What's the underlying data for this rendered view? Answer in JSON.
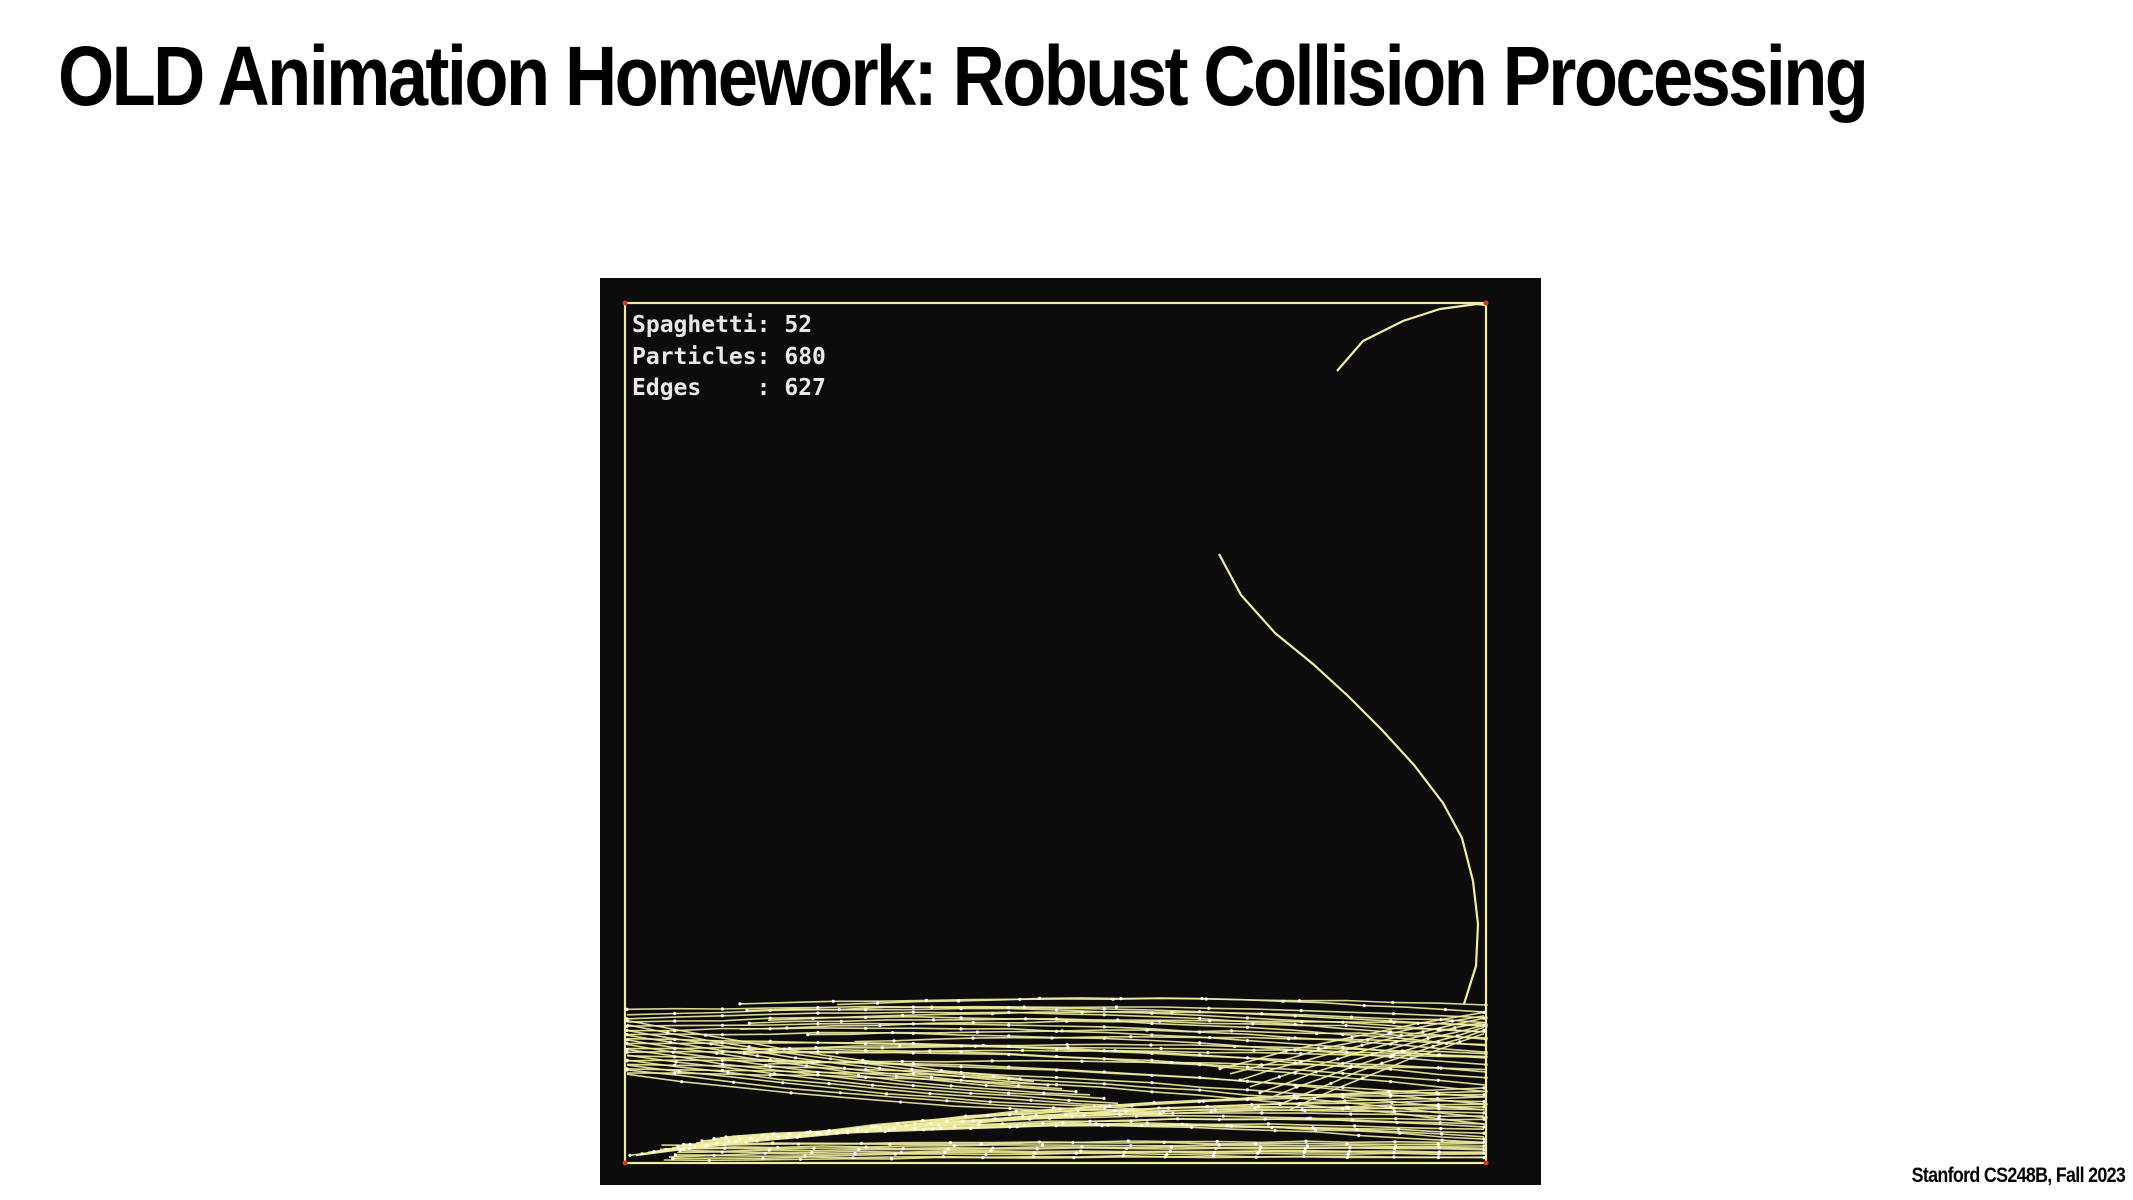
{
  "slide": {
    "title": "OLD Animation Homework:  Robust Collision Processing",
    "footer": "Stanford CS248B, Fall 2023"
  },
  "simulation": {
    "hud": {
      "spaghetti_label": "Spaghetti:",
      "spaghetti_value": "52",
      "particles_label": "Particles:",
      "particles_value": "680",
      "edges_label": "Edges    :",
      "edges_value": "627"
    },
    "colors": {
      "background": "#0b0c0b",
      "strand": "#f2eda0",
      "node": "#ffffff",
      "corner": "#d23a1e",
      "hud_text": "#e9e9e9"
    }
  }
}
